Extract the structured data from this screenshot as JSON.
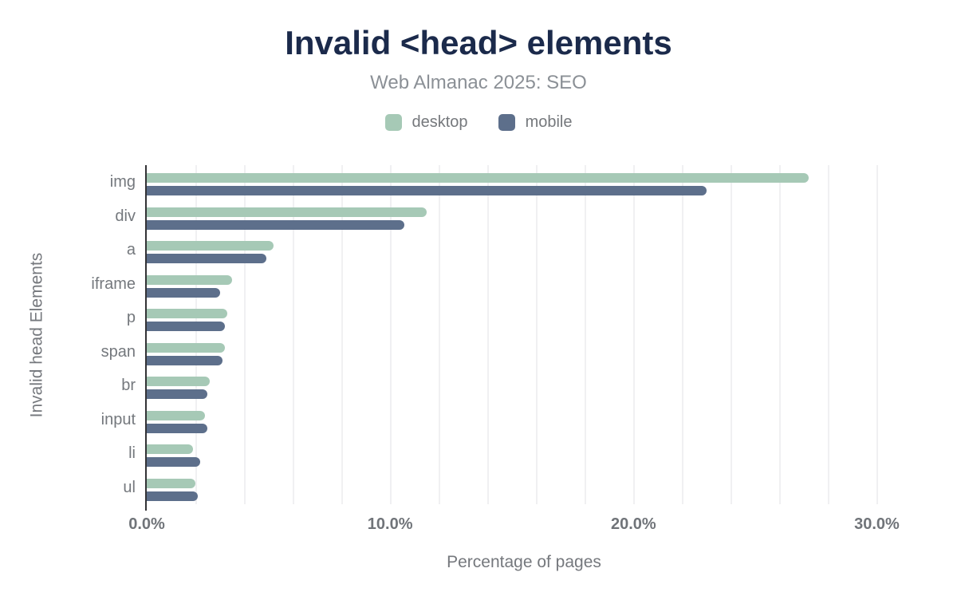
{
  "title": "Invalid <head> elements",
  "subtitle": "Web Almanac 2025: SEO",
  "legend": [
    {
      "label": "desktop",
      "color": "#a6c9b6"
    },
    {
      "label": "mobile",
      "color": "#5d6f8b"
    }
  ],
  "colors": {
    "title_text": "#1b2a4b",
    "subtitle_text": "#8b9096",
    "axis_text": "#74787d",
    "axis_line": "#333336",
    "gridline": "#f0f0f2",
    "desktop_bar": "#a6c9b6",
    "mobile_bar": "#5d6f8b"
  },
  "chart_data": {
    "type": "bar",
    "orientation": "horizontal",
    "title": "Invalid <head> elements",
    "subtitle": "Web Almanac 2025: SEO",
    "categories": [
      "img",
      "div",
      "a",
      "iframe",
      "p",
      "span",
      "br",
      "input",
      "li",
      "ul"
    ],
    "series": [
      {
        "name": "desktop",
        "color": "#a6c9b6",
        "values": [
          27.2,
          11.5,
          5.2,
          3.5,
          3.3,
          3.2,
          2.6,
          2.4,
          1.9,
          2.0
        ]
      },
      {
        "name": "mobile",
        "color": "#5d6f8b",
        "values": [
          23.0,
          10.6,
          4.9,
          3.0,
          3.2,
          3.1,
          2.5,
          2.5,
          2.2,
          2.1
        ]
      }
    ],
    "xlabel": "Percentage of pages",
    "ylabel": "Invalid head Elements",
    "xlim": [
      0,
      31
    ],
    "xticks": [
      {
        "value": 0,
        "label": "0.0%"
      },
      {
        "value": 10,
        "label": "10.0%"
      },
      {
        "value": 20,
        "label": "20.0%"
      },
      {
        "value": 30,
        "label": "30.0%"
      }
    ],
    "grid_interval": 2,
    "grid_max": 30,
    "grid": true,
    "legend_position": "top"
  }
}
